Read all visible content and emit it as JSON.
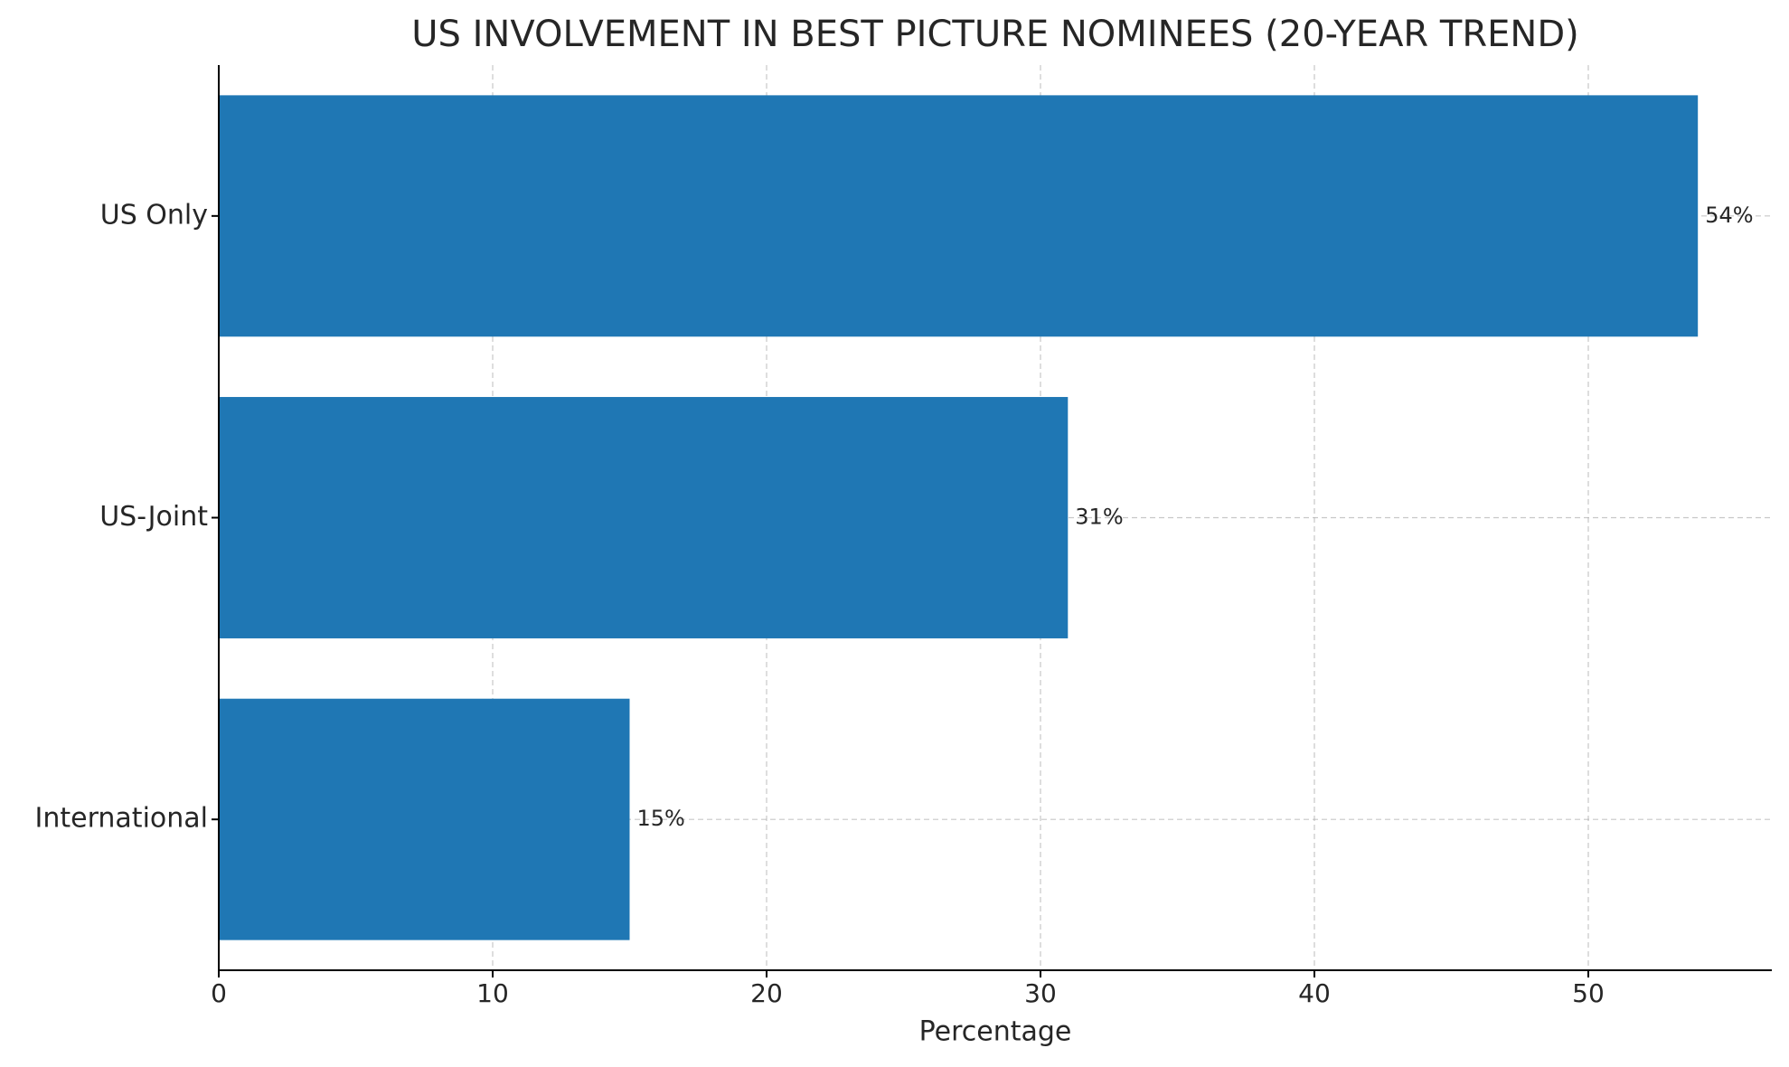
{
  "chart_data": {
    "type": "barh",
    "title": "US INVOLVEMENT IN BEST PICTURE NOMINEES (20-YEAR TREND)",
    "x_label": "Percentage",
    "categories": [
      "International",
      "US-Joint",
      "US Only"
    ],
    "values": [
      15,
      31,
      54
    ],
    "value_labels": [
      "15%",
      "31%",
      "54%"
    ],
    "color": "#1f77b4",
    "xlim": [
      0,
      56.7
    ],
    "xticks": [
      0,
      10,
      20,
      30,
      40,
      50
    ],
    "grid": true
  }
}
